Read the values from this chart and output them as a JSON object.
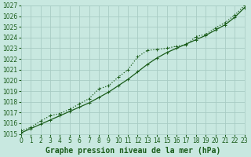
{
  "title": "Graphe pression niveau de la mer (hPa)",
  "background_color": "#c8e8e0",
  "grid_color": "#a8ccc4",
  "line_color": "#1a5c1a",
  "x_values": [
    0,
    1,
    2,
    3,
    4,
    5,
    6,
    7,
    8,
    9,
    10,
    11,
    12,
    13,
    14,
    15,
    16,
    17,
    18,
    19,
    20,
    21,
    22,
    23
  ],
  "y_smooth": [
    1015.1,
    1015.5,
    1015.9,
    1016.3,
    1016.7,
    1017.1,
    1017.5,
    1017.9,
    1018.4,
    1018.9,
    1019.5,
    1020.1,
    1020.8,
    1021.5,
    1022.1,
    1022.6,
    1023.0,
    1023.4,
    1023.8,
    1024.2,
    1024.7,
    1025.2,
    1025.9,
    1026.8
  ],
  "y_wavy": [
    1015.3,
    1015.6,
    1016.2,
    1016.7,
    1016.9,
    1017.3,
    1017.8,
    1018.3,
    1019.2,
    1019.5,
    1020.3,
    1021.0,
    1022.2,
    1022.8,
    1022.9,
    1023.0,
    1023.2,
    1023.3,
    1024.1,
    1024.3,
    1024.9,
    1025.4,
    1026.1,
    1027.0
  ],
  "ylim": [
    1015,
    1027
  ],
  "yticks": [
    1015,
    1016,
    1017,
    1018,
    1019,
    1020,
    1021,
    1022,
    1023,
    1024,
    1025,
    1026,
    1027
  ],
  "xlim": [
    0,
    23
  ],
  "xticks": [
    0,
    1,
    2,
    3,
    4,
    5,
    6,
    7,
    8,
    9,
    10,
    11,
    12,
    13,
    14,
    15,
    16,
    17,
    18,
    19,
    20,
    21,
    22,
    23
  ],
  "tick_fontsize": 5.5,
  "title_fontsize": 7,
  "title_fontweight": "bold"
}
